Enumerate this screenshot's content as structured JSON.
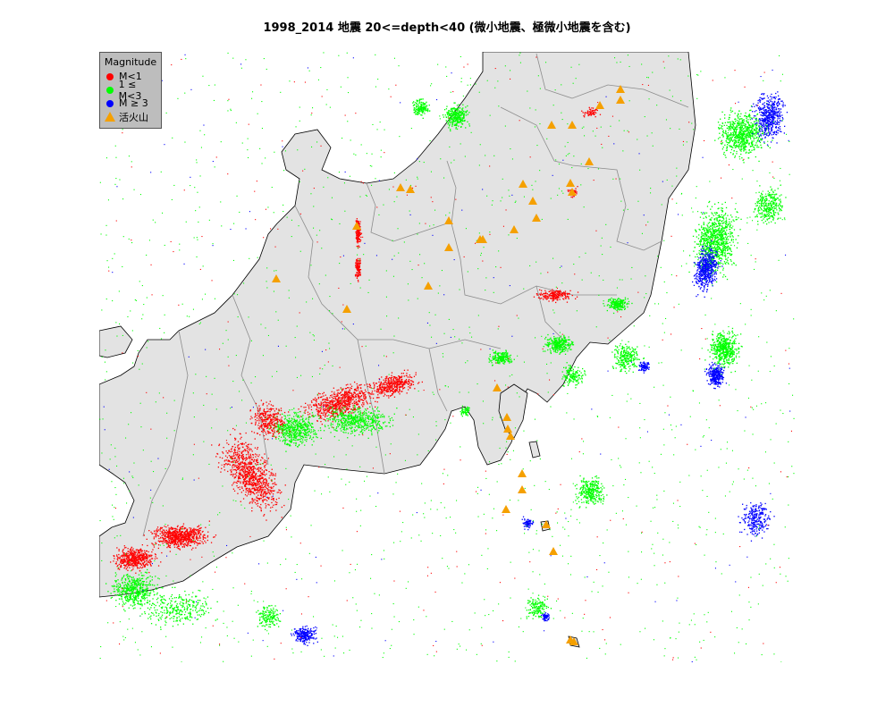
{
  "title": "1998_2014 地震 20<=depth<40 (微小地震、極微小地震を含む)",
  "legend": {
    "title": "Magnitude",
    "items": [
      {
        "label": "M<1",
        "color": "#ff0000",
        "symbol": "dot"
      },
      {
        "label": "1 ≤ M<3",
        "color": "#00ff00",
        "symbol": "dot"
      },
      {
        "label": "M ≥ 3",
        "color": "#0000ff",
        "symbol": "dot"
      },
      {
        "label": "活火山",
        "color": "#f5a000",
        "symbol": "triangle"
      }
    ]
  },
  "colors": {
    "land": "#e3e3e3",
    "coast": "#000000",
    "border": "#8c8c8c",
    "sea": "#ffffff"
  },
  "map_data": {
    "type": "scatter",
    "clusters": [
      {
        "name": "nankai_red_band",
        "mag": "M<1",
        "density": "high"
      },
      {
        "name": "tohoku_offshore",
        "mag": "M ≥ 3",
        "density": "high"
      },
      {
        "name": "izu_ogasawara",
        "mag": "1 ≤ M<3",
        "density": "medium"
      }
    ],
    "volcanoes_count": 30
  }
}
